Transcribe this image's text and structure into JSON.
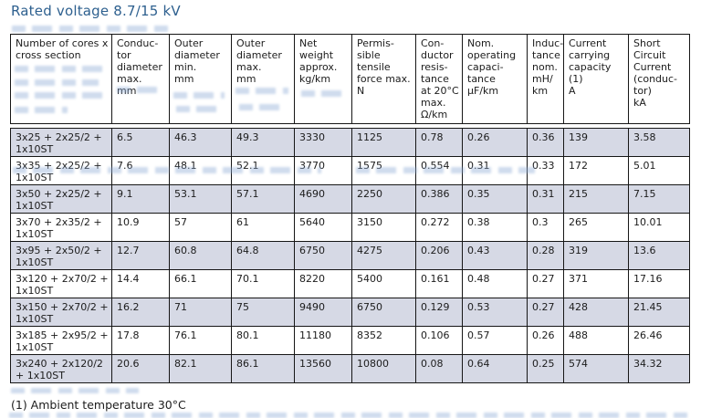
{
  "title": "Rated voltage 8.7/15 kV",
  "footnote": "(1) Ambient temperature 30°C",
  "table": {
    "columns": [
      {
        "label": "Number of cores x\ncross section"
      },
      {
        "label": "Conduc-\ntor\ndiameter\nmax.\nmm"
      },
      {
        "label": "Outer\ndiameter\nmin.\nmm"
      },
      {
        "label": "Outer\ndiameter\nmax.\nmm"
      },
      {
        "label": "Net\nweight\napprox.\nkg/km"
      },
      {
        "label": "Permis-\nsible\ntensile\nforce max.\nN"
      },
      {
        "label": "Con-\nductor\nresis-\ntance\nat 20°C\nmax.\nΩ/km"
      },
      {
        "label": "Nom.\noperating\ncapaci-\ntance\nμF/km"
      },
      {
        "label": "Induc-\ntance\nnom.\nmH/\nkm"
      },
      {
        "label": "Current\ncarrying\ncapacity\n(1)\nA"
      },
      {
        "label": "Short\nCircuit\nCurrent\n(conduc-\ntor)\nkA"
      }
    ],
    "rows": [
      [
        "3x25 + 2x25/2 +\n1x10ST",
        "6.5",
        "46.3",
        "49.3",
        "3330",
        "1125",
        "0.78",
        "0.26",
        "0.36",
        "139",
        "3.58"
      ],
      [
        "3x35 + 2x25/2 +\n1x10ST",
        "7.6",
        "48.1",
        "52.1",
        "3770",
        "1575",
        "0.554",
        "0.31",
        "0.33",
        "172",
        "5.01"
      ],
      [
        "3x50 + 2x25/2 +\n1x10ST",
        "9.1",
        "53.1",
        "57.1",
        "4690",
        "2250",
        "0.386",
        "0.35",
        "0.31",
        "215",
        "7.15"
      ],
      [
        "3x70 + 2x35/2 +\n1x10ST",
        "10.9",
        "57",
        "61",
        "5640",
        "3150",
        "0.272",
        "0.38",
        "0.3",
        "265",
        "10.01"
      ],
      [
        "3x95 + 2x50/2 +\n1x10ST",
        "12.7",
        "60.8",
        "64.8",
        "6750",
        "4275",
        "0.206",
        "0.43",
        "0.28",
        "319",
        "13.6"
      ],
      [
        "3x120 + 2x70/2 +\n1x10ST",
        "14.4",
        "66.1",
        "70.1",
        "8220",
        "5400",
        "0.161",
        "0.48",
        "0.27",
        "371",
        "17.16"
      ],
      [
        "3x150 + 2x70/2 +\n1x10ST",
        "16.2",
        "71",
        "75",
        "9490",
        "6750",
        "0.129",
        "0.53",
        "0.27",
        "428",
        "21.45"
      ],
      [
        "3x185 + 2x95/2 +\n1x10ST",
        "17.8",
        "76.1",
        "80.1",
        "11180",
        "8352",
        "0.106",
        "0.57",
        "0.26",
        "488",
        "26.46"
      ],
      [
        "3x240 + 2x120/2\n+ 1x10ST",
        "20.6",
        "82.1",
        "86.1",
        "13560",
        "10800",
        "0.08",
        "0.64",
        "0.25",
        "574",
        "34.32"
      ]
    ]
  }
}
